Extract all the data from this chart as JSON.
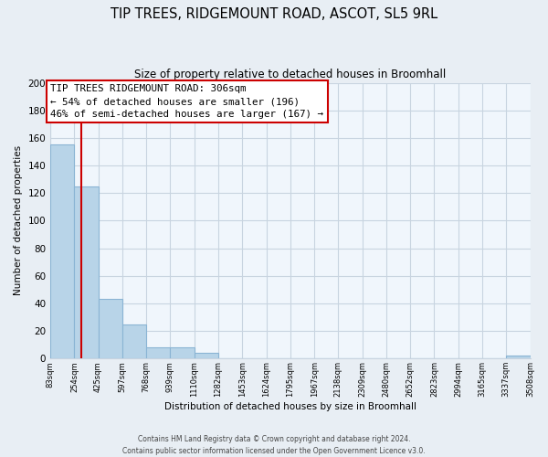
{
  "title": "TIP TREES, RIDGEMOUNT ROAD, ASCOT, SL5 9RL",
  "subtitle": "Size of property relative to detached houses in Broomhall",
  "xlabel": "Distribution of detached houses by size in Broomhall",
  "ylabel": "Number of detached properties",
  "bin_edges": [
    83,
    254,
    425,
    597,
    768,
    939,
    1110,
    1282,
    1453,
    1624,
    1795,
    1967,
    2138,
    2309,
    2480,
    2652,
    2823,
    2994,
    3165,
    3337,
    3508
  ],
  "bar_heights": [
    155,
    125,
    43,
    25,
    8,
    8,
    4,
    0,
    0,
    0,
    0,
    0,
    0,
    0,
    0,
    0,
    0,
    0,
    0,
    2
  ],
  "bar_color": "#b8d4e8",
  "bar_edgecolor": "#8ab4d4",
  "property_line_x": 306,
  "property_line_color": "#cc0000",
  "ylim": [
    0,
    200
  ],
  "yticks": [
    0,
    20,
    40,
    60,
    80,
    100,
    120,
    140,
    160,
    180,
    200
  ],
  "annotation_title": "TIP TREES RIDGEMOUNT ROAD: 306sqm",
  "annotation_line1": "← 54% of detached houses are smaller (196)",
  "annotation_line2": "46% of semi-detached houses are larger (167) →",
  "annotation_box_color": "#ffffff",
  "annotation_box_edgecolor": "#cc0000",
  "footer1": "Contains HM Land Registry data © Crown copyright and database right 2024.",
  "footer2": "Contains public sector information licensed under the Open Government Licence v3.0.",
  "background_color": "#e8eef4",
  "plot_background": "#f0f6fc",
  "grid_color": "#c8d4e0"
}
